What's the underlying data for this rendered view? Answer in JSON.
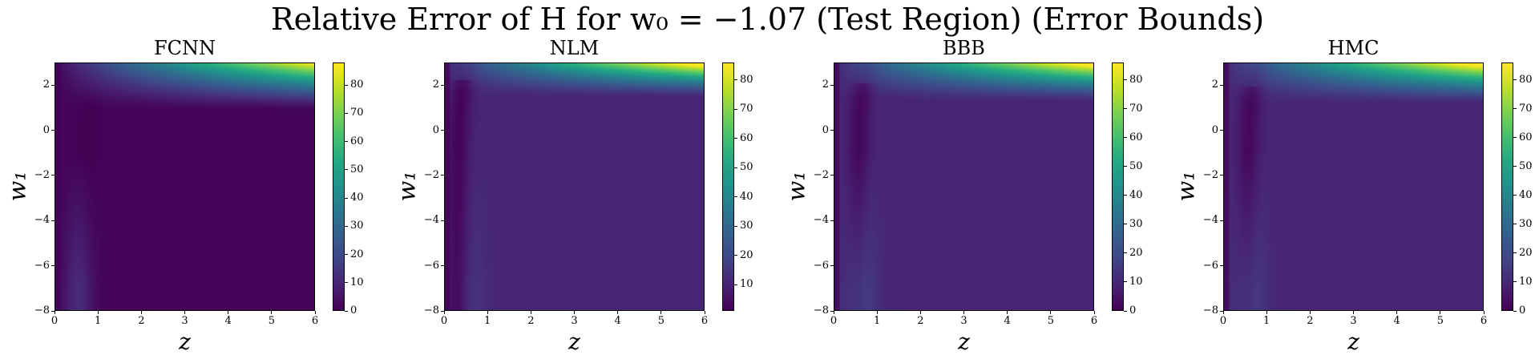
{
  "figure": {
    "title": "Relative Error of H for w₀ = −1.07 (Test Region) (Error Bounds)"
  },
  "colormap": "viridis",
  "chart_data": [
    {
      "type": "heatmap",
      "title": "FCNN",
      "xlabel": "z",
      "ylabel": "w₁",
      "xlim": [
        0,
        6
      ],
      "ylim": [
        -8,
        3
      ],
      "x_ticks": [
        0,
        1,
        2,
        3,
        4,
        5,
        6
      ],
      "y_ticks": [
        -8,
        -6,
        -4,
        -2,
        0,
        2
      ],
      "colorbar": {
        "min": 0,
        "max": 88,
        "ticks": [
          0,
          10,
          20,
          30,
          40,
          50,
          60,
          70,
          80
        ]
      },
      "pattern": {
        "base": 0.8,
        "top_max": 88,
        "top_onset_w1": 0.9,
        "bottom_band_peak": 11,
        "bottom_band_z": 0.55,
        "curve_dip": 1.0,
        "curve_z": 0.75
      }
    },
    {
      "type": "heatmap",
      "title": "NLM",
      "xlabel": "z",
      "ylabel": "w₁",
      "xlim": [
        0,
        6
      ],
      "ylim": [
        -8,
        3
      ],
      "x_ticks": [
        0,
        1,
        2,
        3,
        4,
        5,
        6
      ],
      "y_ticks": [
        -8,
        -6,
        -4,
        -2,
        0,
        2
      ],
      "colorbar": {
        "min": 1,
        "max": 86,
        "ticks": [
          10,
          20,
          30,
          40,
          50,
          60,
          70,
          80
        ]
      },
      "pattern": {
        "base": 10,
        "top_max": 86,
        "top_onset_w1": 1.5,
        "bottom_band_peak": 14,
        "bottom_band_z": 0.6,
        "curve_dip": 8,
        "curve_z": 0.3
      }
    },
    {
      "type": "heatmap",
      "title": "BBB",
      "xlabel": "z",
      "ylabel": "w₁",
      "xlim": [
        0,
        6
      ],
      "ylim": [
        -8,
        3
      ],
      "x_ticks": [
        0,
        1,
        2,
        3,
        4,
        5,
        6
      ],
      "y_ticks": [
        -8,
        -6,
        -4,
        -2,
        0,
        2
      ],
      "colorbar": {
        "min": 0,
        "max": 86,
        "ticks": [
          0,
          10,
          20,
          30,
          40,
          50,
          60,
          70,
          80
        ]
      },
      "pattern": {
        "base": 9,
        "top_max": 86,
        "top_onset_w1": 1.3,
        "bottom_band_peak": 20,
        "bottom_band_z": 0.6,
        "curve_dip": 7,
        "curve_z": 0.55
      }
    },
    {
      "type": "heatmap",
      "title": "HMC",
      "xlabel": "z",
      "ylabel": "w₁",
      "xlim": [
        0,
        6
      ],
      "ylim": [
        -8,
        3
      ],
      "x_ticks": [
        0,
        1,
        2,
        3,
        4,
        5,
        6
      ],
      "y_ticks": [
        -8,
        -6,
        -4,
        -2,
        0,
        2
      ],
      "colorbar": {
        "min": 0,
        "max": 86,
        "ticks": [
          0,
          10,
          20,
          30,
          40,
          50,
          60,
          70,
          80
        ]
      },
      "pattern": {
        "base": 9,
        "top_max": 86,
        "top_onset_w1": 1.2,
        "bottom_band_peak": 19,
        "bottom_band_z": 0.6,
        "curve_dip": 7,
        "curve_z": 0.55
      }
    }
  ]
}
